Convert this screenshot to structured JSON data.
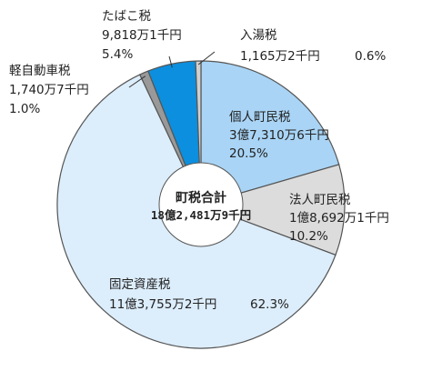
{
  "chart_data": {
    "type": "pie",
    "variant": "donut",
    "total": {
      "label": "町税合計",
      "value_text": "18億2,481万9千円"
    },
    "slices": [
      {
        "name": "個人町民税",
        "amount_text": "3億7,310万6千円",
        "percent": 20.5,
        "percent_text": "20.5%",
        "color": "#a9d4f5"
      },
      {
        "name": "法人町民税",
        "amount_text": "1億8,692万1千円",
        "percent": 10.2,
        "percent_text": "10.2%",
        "color": "#dcdcdc"
      },
      {
        "name": "固定資産税",
        "amount_text": "11億3,755万2千円",
        "percent": 62.3,
        "percent_text": "62.3%",
        "color": "#dcedfb"
      },
      {
        "name": "軽自動車税",
        "amount_text": "1,740万7千円",
        "percent": 1.0,
        "percent_text": "1.0%",
        "color": "#999999"
      },
      {
        "name": "たばこ税",
        "amount_text": "9,818万1千円",
        "percent": 5.4,
        "percent_text": "5.4%",
        "color": "#0c8fde"
      },
      {
        "name": "入湯税",
        "amount_text": "1,165万2千円",
        "percent": 0.6,
        "percent_text": "0.6%",
        "color": "#d0d0d0"
      }
    ],
    "start_position": "top",
    "direction": "clockwise",
    "legend": "none"
  }
}
